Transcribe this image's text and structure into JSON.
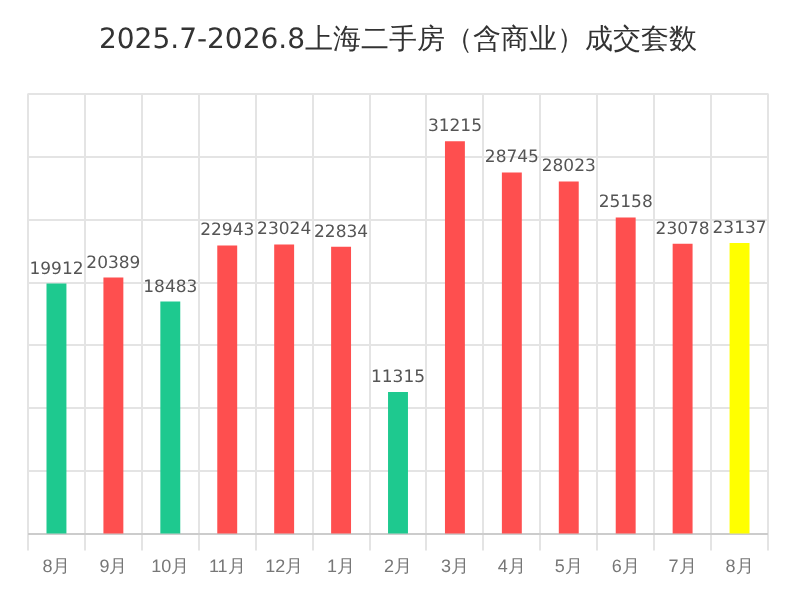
{
  "chart_data": {
    "type": "bar",
    "title": "2025.7-2026.8上海二手房（含商业）成交套数",
    "categories": [
      "8月",
      "9月",
      "10月",
      "11月",
      "12月",
      "1月",
      "2月",
      "3月",
      "4月",
      "5月",
      "6月",
      "7月",
      "8月"
    ],
    "values": [
      19912,
      20389,
      18483,
      22943,
      23024,
      22834,
      11315,
      31215,
      28745,
      28023,
      25158,
      23078,
      23137
    ],
    "colors": [
      "#1ec98f",
      "#fe4f4f",
      "#1ec98f",
      "#fe4f4f",
      "#fe4f4f",
      "#fe4f4f",
      "#1ec98f",
      "#fe4f4f",
      "#fe4f4f",
      "#fe4f4f",
      "#fe4f4f",
      "#fe4f4f",
      "#ffff00"
    ],
    "data_labels": true,
    "grid": true,
    "legend": false
  }
}
